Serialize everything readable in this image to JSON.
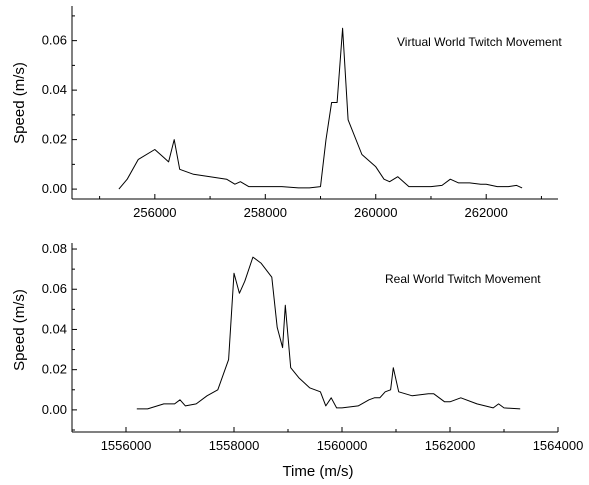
{
  "chart_data": [
    {
      "type": "line",
      "title": "Virtual World Twitch Movement",
      "xlabel": "",
      "ylabel": "Speed (m/s)",
      "xlim": [
        254500,
        263300
      ],
      "ylim": [
        -0.004,
        0.074
      ],
      "xticks": [
        256000,
        258000,
        260000,
        262000
      ],
      "xtick_labels": [
        "256000",
        "258000",
        "260000",
        "262000"
      ],
      "yticks": [
        0.0,
        0.02,
        0.04,
        0.06
      ],
      "ytick_labels": [
        "0.00",
        "0.02",
        "0.04",
        "0.06"
      ],
      "grid": false,
      "series": [
        {
          "x": [
            255350,
            255500,
            255700,
            256000,
            256150,
            256250,
            256350,
            256450,
            256700,
            257000,
            257300,
            257450,
            257550,
            257700,
            258000,
            258300,
            258600,
            258800,
            259000,
            259100,
            259200,
            259300,
            259400,
            259500,
            259750,
            260000,
            260150,
            260250,
            260400,
            260600,
            260800,
            261000,
            261200,
            261350,
            261500,
            261700,
            261900,
            262000,
            262200,
            262400,
            262550,
            262650
          ],
          "y": [
            0.0,
            0.004,
            0.012,
            0.016,
            0.013,
            0.011,
            0.02,
            0.008,
            0.006,
            0.005,
            0.004,
            0.002,
            0.003,
            0.001,
            0.001,
            0.001,
            0.0005,
            0.0005,
            0.001,
            0.02,
            0.035,
            0.035,
            0.065,
            0.028,
            0.014,
            0.009,
            0.004,
            0.003,
            0.005,
            0.001,
            0.001,
            0.001,
            0.0015,
            0.004,
            0.0025,
            0.0025,
            0.002,
            0.002,
            0.001,
            0.001,
            0.0015,
            0.0005
          ]
        }
      ]
    },
    {
      "type": "line",
      "title": "Real World Twitch Movement",
      "xlabel": "Time (m/s)",
      "ylabel": "Speed (m/s)",
      "xlim": [
        1555000,
        1564000
      ],
      "ylim": [
        -0.011,
        0.083
      ],
      "xticks": [
        1556000,
        1558000,
        1560000,
        1562000,
        1564000
      ],
      "xtick_labels": [
        "1556000",
        "1558000",
        "1560000",
        "1562000",
        "1564000"
      ],
      "yticks": [
        0.0,
        0.02,
        0.04,
        0.06,
        0.08
      ],
      "ytick_labels": [
        "0.00",
        "0.02",
        "0.04",
        "0.06",
        "0.08"
      ],
      "grid": false,
      "series": [
        {
          "x": [
            1556200,
            1556400,
            1556700,
            1556900,
            1557000,
            1557100,
            1557300,
            1557500,
            1557700,
            1557900,
            1558000,
            1558100,
            1558200,
            1558350,
            1558500,
            1558700,
            1558800,
            1558900,
            1558950,
            1559050,
            1559200,
            1559400,
            1559600,
            1559700,
            1559800,
            1559900,
            1560000,
            1560300,
            1560500,
            1560600,
            1560700,
            1560800,
            1560900,
            1560950,
            1561050,
            1561300,
            1561600,
            1561700,
            1561900,
            1562000,
            1562200,
            1562500,
            1562800,
            1562900,
            1563000,
            1563300
          ],
          "y": [
            0.0005,
            0.0005,
            0.003,
            0.003,
            0.005,
            0.002,
            0.003,
            0.007,
            0.01,
            0.025,
            0.068,
            0.058,
            0.064,
            0.076,
            0.073,
            0.066,
            0.041,
            0.031,
            0.052,
            0.021,
            0.016,
            0.011,
            0.009,
            0.002,
            0.006,
            0.001,
            0.001,
            0.002,
            0.005,
            0.006,
            0.006,
            0.009,
            0.01,
            0.021,
            0.009,
            0.007,
            0.008,
            0.008,
            0.004,
            0.004,
            0.006,
            0.003,
            0.001,
            0.003,
            0.001,
            0.0005
          ]
        }
      ]
    }
  ]
}
